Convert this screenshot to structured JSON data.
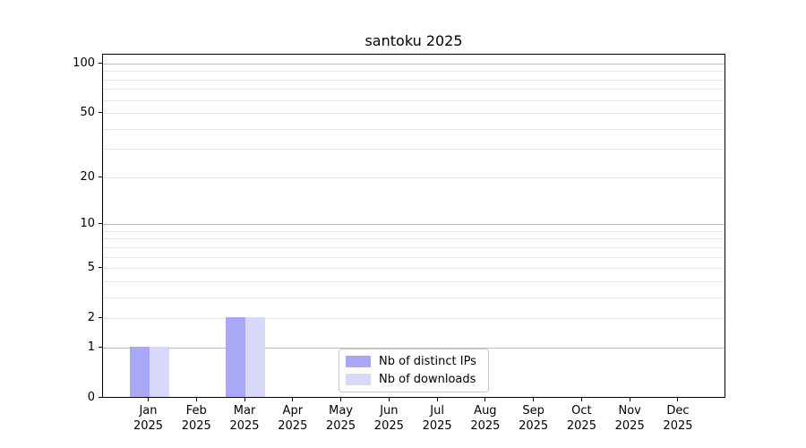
{
  "chart_data": {
    "type": "bar",
    "title": "santoku 2025",
    "categories": [
      "Jan\n2025",
      "Feb\n2025",
      "Mar\n2025",
      "Apr\n2025",
      "May\n2025",
      "Jun\n2025",
      "Jul\n2025",
      "Aug\n2025",
      "Sep\n2025",
      "Oct\n2025",
      "Nov\n2025",
      "Dec\n2025"
    ],
    "series": [
      {
        "name": "Nb of distinct IPs",
        "color": "#a8a8f6",
        "values": [
          1,
          0,
          2,
          0,
          0,
          0,
          0,
          0,
          0,
          0,
          0,
          0
        ]
      },
      {
        "name": "Nb of downloads",
        "color": "#d8d8fa",
        "values": [
          1,
          0,
          2,
          0,
          0,
          0,
          0,
          0,
          0,
          0,
          0,
          0
        ]
      }
    ],
    "xlabel": "",
    "ylabel": "",
    "y_axis": {
      "scale": "log1p",
      "ticks": [
        0,
        1,
        2,
        5,
        10,
        20,
        50,
        100
      ],
      "gridlines_major": [
        1,
        10,
        100
      ],
      "gridlines_minor": [
        2,
        3,
        4,
        5,
        6,
        7,
        8,
        9,
        20,
        30,
        40,
        50,
        60,
        70,
        80,
        90
      ],
      "ylim": [
        0,
        115
      ]
    },
    "grid": "on",
    "legend_position": "inside-bottom-center"
  }
}
